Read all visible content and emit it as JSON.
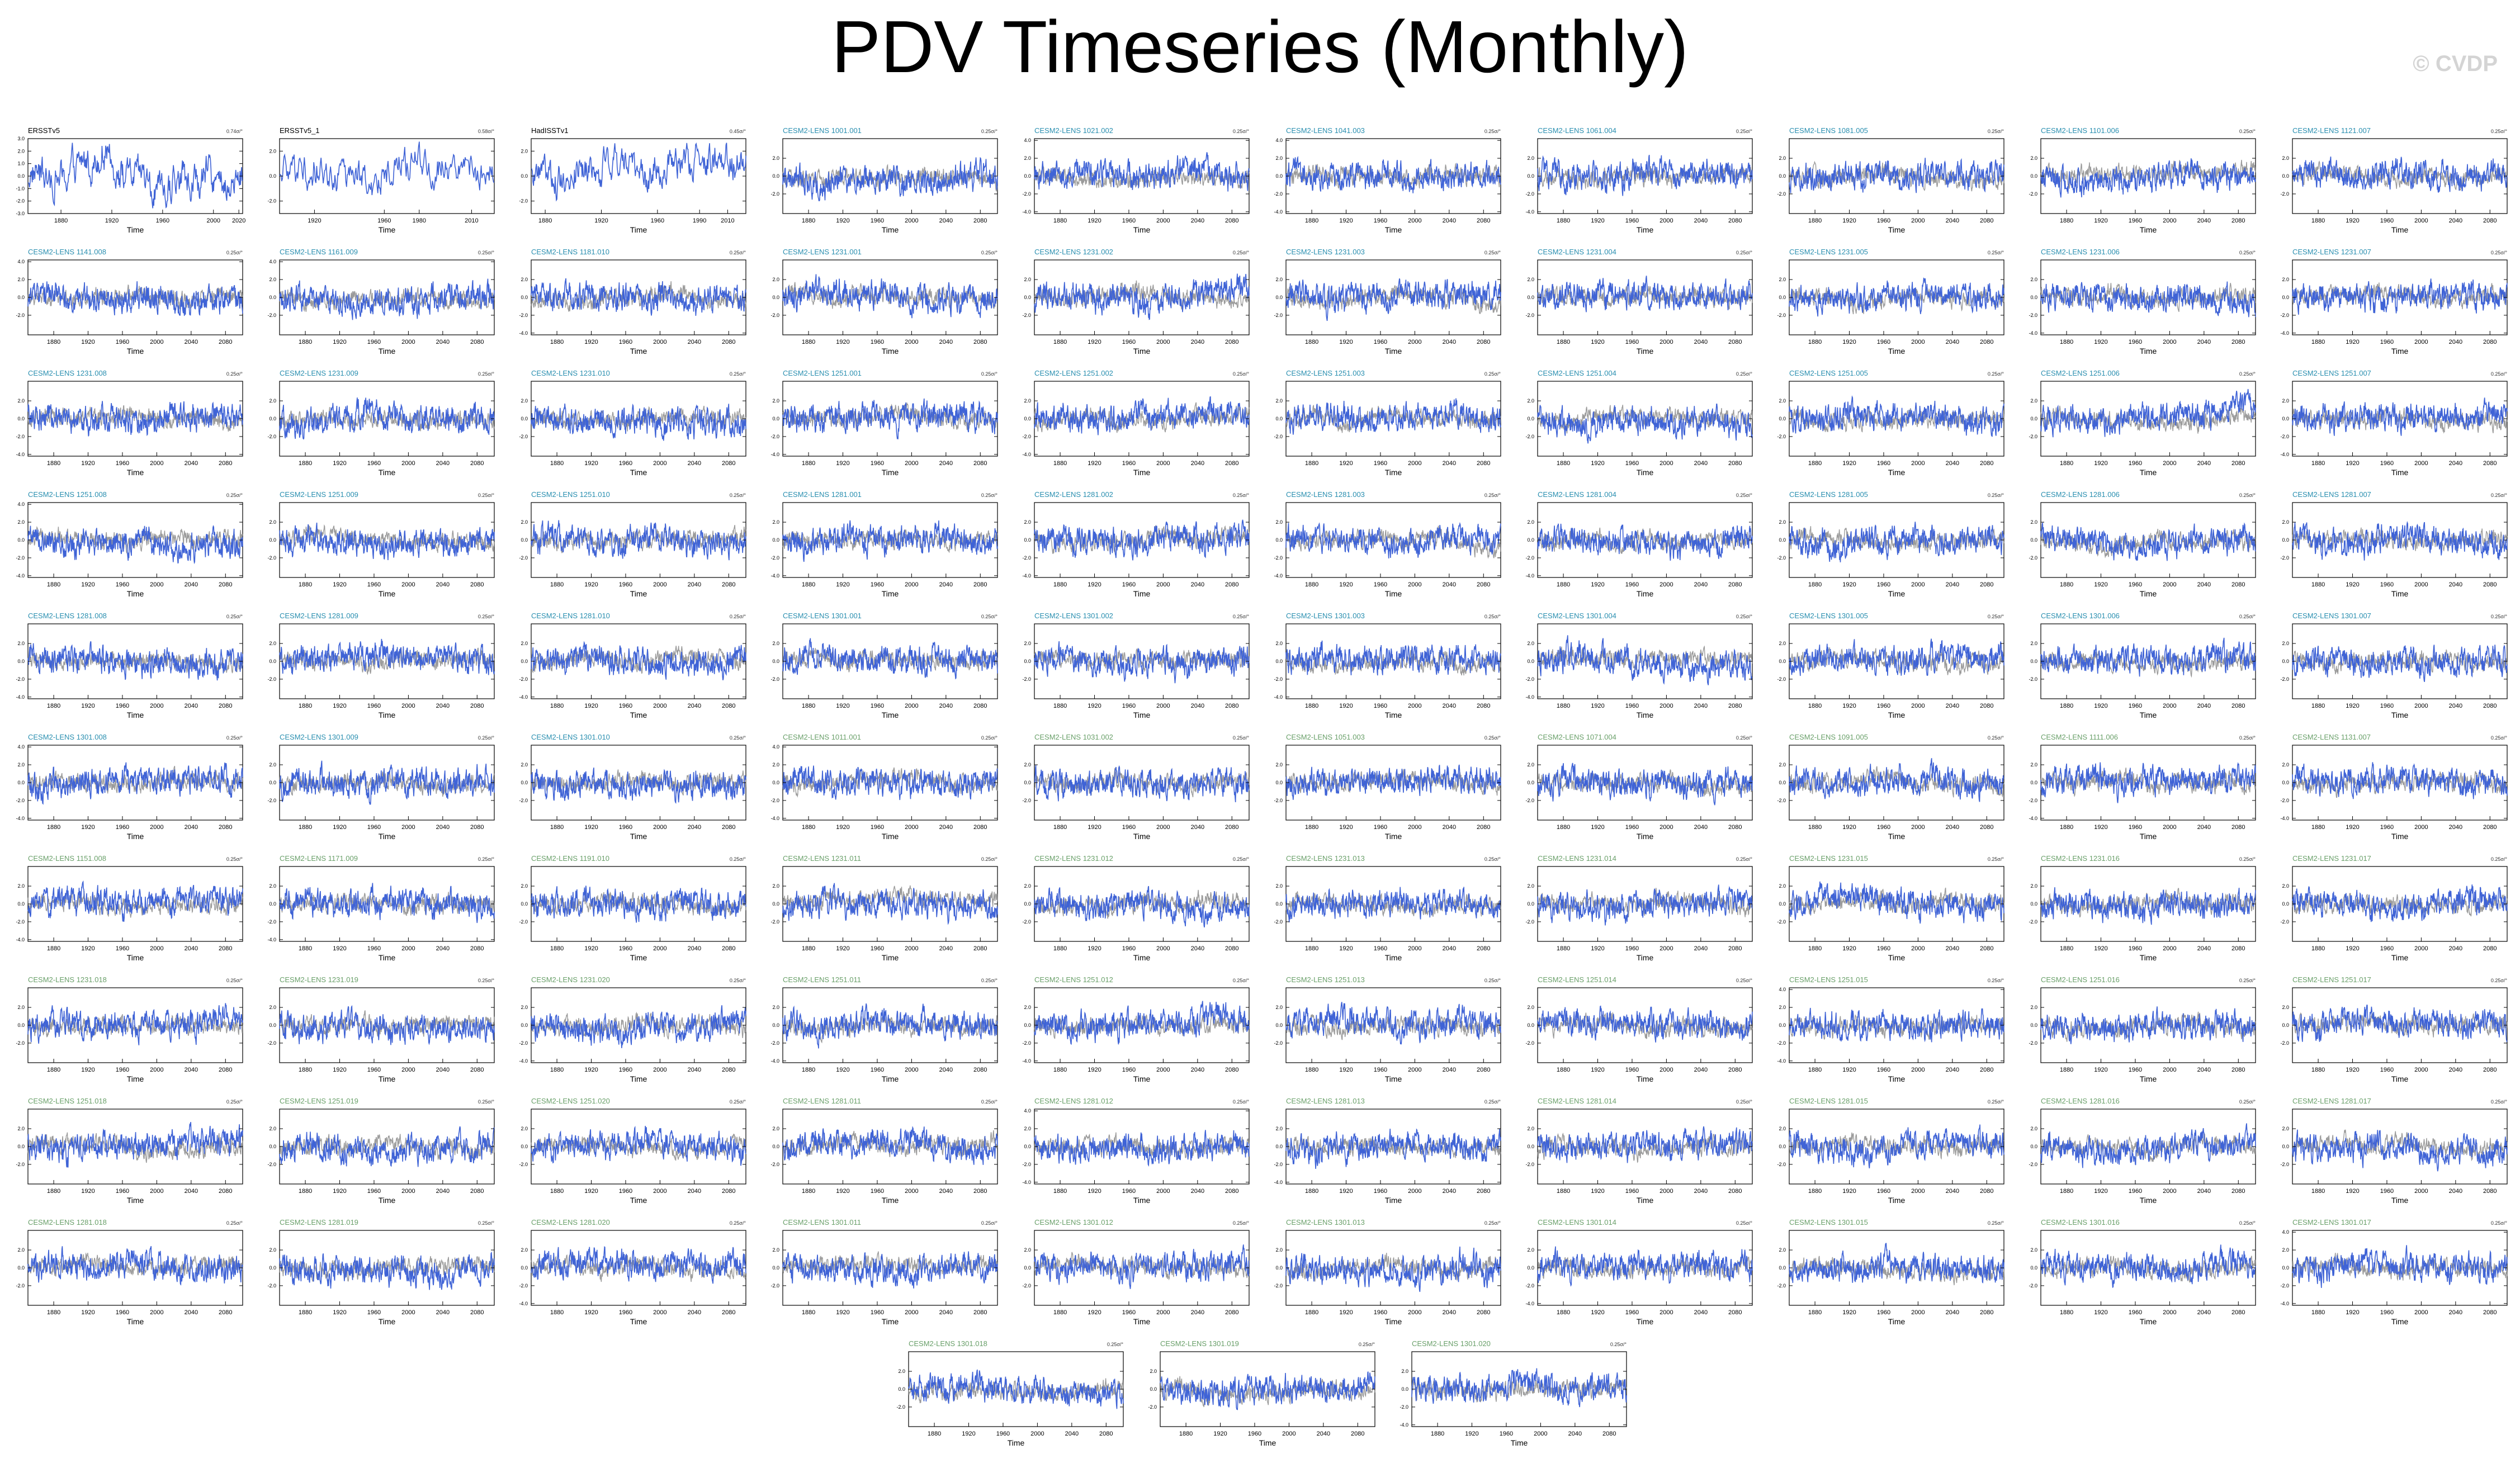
{
  "title": "PDV Timeseries (Monthly)",
  "watermark": "© CVDP",
  "colors": {
    "obs_line": "#3f63d6",
    "model_line": "#3f63d6",
    "ensemble_spread": "#8a8a8a",
    "obs_title": "#000000",
    "model_title_a": "#2a8fb0",
    "model_title_b": "#6aa06a"
  },
  "chart_data": {
    "type": "line",
    "xlabel": "Time",
    "panels": [
      {
        "title": "ERSSTv5",
        "trend": "0.74σ/°",
        "kind": "obs",
        "x_ticks": [
          1880,
          1920,
          1960,
          2000,
          2020
        ],
        "xlim": [
          1854,
          2023
        ],
        "y_ticks": [
          "3.0",
          "2.0",
          "1.0",
          "0.0",
          "-1.0",
          "-2.0",
          "-3.0"
        ],
        "ylim": [
          -3.0,
          3.0
        ]
      },
      {
        "title": "ERSSTv5_1",
        "trend": "0.58σ/°",
        "kind": "obs",
        "x_ticks": [
          1920,
          1960,
          1980,
          2010
        ],
        "xlim": [
          1900,
          2023
        ],
        "y_ticks": [
          "2.0",
          "0.0",
          "-2.0"
        ],
        "ylim": [
          -3.0,
          3.0
        ]
      },
      {
        "title": "HadISSTv1",
        "trend": "0.45σ/°",
        "kind": "obs",
        "x_ticks": [
          1880,
          1920,
          1960,
          1990,
          2010
        ],
        "xlim": [
          1870,
          2023
        ],
        "y_ticks": [
          "2.0",
          "0.0",
          "-2.0"
        ],
        "ylim": [
          -3.0,
          3.0
        ]
      },
      {
        "title": "CESM2-LENS 1001.001",
        "trend": "0.25σ/°",
        "kind": "a"
      },
      {
        "title": "CESM2-LENS 1021.002",
        "trend": "0.25σ/°",
        "kind": "a",
        "y_ticks": [
          "4.0",
          "2.0",
          "0.0",
          "-2.0",
          "-4.0"
        ]
      },
      {
        "title": "CESM2-LENS 1041.003",
        "trend": "0.25σ/°",
        "kind": "a",
        "y_ticks": [
          "4.0",
          "2.0",
          "0.0",
          "-2.0",
          "-4.0"
        ]
      },
      {
        "title": "CESM2-LENS 1061.004",
        "trend": "0.25σ/°",
        "kind": "a",
        "y_ticks": [
          "2.0",
          "0.0",
          "-2.0",
          "-4.0"
        ]
      },
      {
        "title": "CESM2-LENS 1081.005",
        "trend": "0.25σ/°",
        "kind": "a"
      },
      {
        "title": "CESM2-LENS 1101.006",
        "trend": "0.25σ/°",
        "kind": "a"
      },
      {
        "title": "CESM2-LENS 1121.007",
        "trend": "0.25σ/°",
        "kind": "a"
      },
      {
        "title": "CESM2-LENS 1141.008",
        "trend": "0.25σ/°",
        "kind": "a",
        "y_ticks": [
          "4.0",
          "2.0",
          "0.0",
          "-2.0"
        ]
      },
      {
        "title": "CESM2-LENS 1161.009",
        "trend": "0.25σ/°",
        "kind": "a",
        "y_ticks": [
          "4.0",
          "2.0",
          "0.0",
          "-2.0"
        ]
      },
      {
        "title": "CESM2-LENS 1181.010",
        "trend": "0.25σ/°",
        "kind": "a",
        "y_ticks": [
          "2.0",
          "0.0",
          "-2.0",
          "-4.0"
        ]
      },
      {
        "title": "CESM2-LENS 1231.001",
        "trend": "0.25σ/°",
        "kind": "a"
      },
      {
        "title": "CESM2-LENS 1231.002",
        "trend": "0.25σ/°",
        "kind": "a"
      },
      {
        "title": "CESM2-LENS 1231.003",
        "trend": "0.25σ/°",
        "kind": "a"
      },
      {
        "title": "CESM2-LENS 1231.004",
        "trend": "0.25σ/°",
        "kind": "a"
      },
      {
        "title": "CESM2-LENS 1231.005",
        "trend": "0.25σ/°",
        "kind": "a"
      },
      {
        "title": "CESM2-LENS 1231.006",
        "trend": "0.25σ/°",
        "kind": "a",
        "y_ticks": [
          "2.0",
          "0.0",
          "-2.0",
          "-4.0"
        ]
      },
      {
        "title": "CESM2-LENS 1231.007",
        "trend": "0.25σ/°",
        "kind": "a",
        "y_ticks": [
          "2.0",
          "0.0",
          "-2.0",
          "-4.0"
        ]
      },
      {
        "title": "CESM2-LENS 1231.008",
        "trend": "0.25σ/°",
        "kind": "a",
        "y_ticks": [
          "2.0",
          "0.0",
          "-2.0",
          "-4.0"
        ]
      },
      {
        "title": "CESM2-LENS 1231.009",
        "trend": "0.25σ/°",
        "kind": "a"
      },
      {
        "title": "CESM2-LENS 1231.010",
        "trend": "0.25σ/°",
        "kind": "a"
      },
      {
        "title": "CESM2-LENS 1251.001",
        "trend": "0.25σ/°",
        "kind": "a",
        "y_ticks": [
          "2.0",
          "0.0",
          "-2.0",
          "-4.0"
        ]
      },
      {
        "title": "CESM2-LENS 1251.002",
        "trend": "0.25σ/°",
        "kind": "a",
        "y_ticks": [
          "2.0",
          "0.0",
          "-2.0",
          "-4.0"
        ]
      },
      {
        "title": "CESM2-LENS 1251.003",
        "trend": "0.25σ/°",
        "kind": "a"
      },
      {
        "title": "CESM2-LENS 1251.004",
        "trend": "0.25σ/°",
        "kind": "a"
      },
      {
        "title": "CESM2-LENS 1251.005",
        "trend": "0.25σ/°",
        "kind": "a"
      },
      {
        "title": "CESM2-LENS 1251.006",
        "trend": "0.25σ/°",
        "kind": "a"
      },
      {
        "title": "CESM2-LENS 1251.007",
        "trend": "0.25σ/°",
        "kind": "a",
        "y_ticks": [
          "2.0",
          "0.0",
          "-2.0",
          "-4.0"
        ]
      },
      {
        "title": "CESM2-LENS 1251.008",
        "trend": "0.25σ/°",
        "kind": "a",
        "y_ticks": [
          "4.0",
          "2.0",
          "0.0",
          "-2.0",
          "-4.0"
        ]
      },
      {
        "title": "CESM2-LENS 1251.009",
        "trend": "0.25σ/°",
        "kind": "a"
      },
      {
        "title": "CESM2-LENS 1251.010",
        "trend": "0.25σ/°",
        "kind": "a"
      },
      {
        "title": "CESM2-LENS 1281.001",
        "trend": "0.25σ/°",
        "kind": "a",
        "y_ticks": [
          "2.0",
          "0.0",
          "-2.0",
          "-4.0"
        ]
      },
      {
        "title": "CESM2-LENS 1281.002",
        "trend": "0.25σ/°",
        "kind": "a",
        "y_ticks": [
          "2.0",
          "0.0",
          "-2.0",
          "-4.0"
        ]
      },
      {
        "title": "CESM2-LENS 1281.003",
        "trend": "0.25σ/°",
        "kind": "a",
        "y_ticks": [
          "2.0",
          "0.0",
          "-2.0",
          "-4.0"
        ]
      },
      {
        "title": "CESM2-LENS 1281.004",
        "trend": "0.25σ/°",
        "kind": "a",
        "y_ticks": [
          "2.0",
          "0.0",
          "-2.0",
          "-4.0"
        ]
      },
      {
        "title": "CESM2-LENS 1281.005",
        "trend": "0.25σ/°",
        "kind": "a"
      },
      {
        "title": "CESM2-LENS 1281.006",
        "trend": "0.25σ/°",
        "kind": "a"
      },
      {
        "title": "CESM2-LENS 1281.007",
        "trend": "0.25σ/°",
        "kind": "a"
      },
      {
        "title": "CESM2-LENS 1281.008",
        "trend": "0.25σ/°",
        "kind": "a",
        "y_ticks": [
          "2.0",
          "0.0",
          "-2.0",
          "-4.0"
        ]
      },
      {
        "title": "CESM2-LENS 1281.009",
        "trend": "0.25σ/°",
        "kind": "a"
      },
      {
        "title": "CESM2-LENS 1281.010",
        "trend": "0.25σ/°",
        "kind": "a",
        "y_ticks": [
          "2.0",
          "0.0",
          "-2.0",
          "-4.0"
        ]
      },
      {
        "title": "CESM2-LENS 1301.001",
        "trend": "0.25σ/°",
        "kind": "a"
      },
      {
        "title": "CESM2-LENS 1301.002",
        "trend": "0.25σ/°",
        "kind": "a"
      },
      {
        "title": "CESM2-LENS 1301.003",
        "trend": "0.25σ/°",
        "kind": "a",
        "y_ticks": [
          "2.0",
          "0.0",
          "-2.0",
          "-4.0"
        ]
      },
      {
        "title": "CESM2-LENS 1301.004",
        "trend": "0.25σ/°",
        "kind": "a",
        "y_ticks": [
          "2.0",
          "0.0",
          "-2.0",
          "-4.0"
        ]
      },
      {
        "title": "CESM2-LENS 1301.005",
        "trend": "0.25σ/°",
        "kind": "a"
      },
      {
        "title": "CESM2-LENS 1301.006",
        "trend": "0.25σ/°",
        "kind": "a"
      },
      {
        "title": "CESM2-LENS 1301.007",
        "trend": "0.25σ/°",
        "kind": "a"
      },
      {
        "title": "CESM2-LENS 1301.008",
        "trend": "0.25σ/°",
        "kind": "a",
        "y_ticks": [
          "4.0",
          "2.0",
          "0.0",
          "-2.0",
          "-4.0"
        ]
      },
      {
        "title": "CESM2-LENS 1301.009",
        "trend": "0.25σ/°",
        "kind": "a"
      },
      {
        "title": "CESM2-LENS 1301.010",
        "trend": "0.25σ/°",
        "kind": "a"
      },
      {
        "title": "CESM2-LENS 1011.001",
        "trend": "0.25σ/°",
        "kind": "b",
        "y_ticks": [
          "4.0",
          "2.0",
          "0.0",
          "-2.0",
          "-4.0"
        ]
      },
      {
        "title": "CESM2-LENS 1031.002",
        "trend": "0.25σ/°",
        "kind": "b"
      },
      {
        "title": "CESM2-LENS 1051.003",
        "trend": "0.25σ/°",
        "kind": "b"
      },
      {
        "title": "CESM2-LENS 1071.004",
        "trend": "0.25σ/°",
        "kind": "b"
      },
      {
        "title": "CESM2-LENS 1091.005",
        "trend": "0.25σ/°",
        "kind": "b"
      },
      {
        "title": "CESM2-LENS 1111.006",
        "trend": "0.25σ/°",
        "kind": "b",
        "y_ticks": [
          "2.0",
          "0.0",
          "-2.0",
          "-4.0"
        ]
      },
      {
        "title": "CESM2-LENS 1131.007",
        "trend": "0.25σ/°",
        "kind": "b",
        "y_ticks": [
          "2.0",
          "0.0",
          "-2.0",
          "-4.0"
        ]
      },
      {
        "title": "CESM2-LENS 1151.008",
        "trend": "0.25σ/°",
        "kind": "b",
        "y_ticks": [
          "2.0",
          "0.0",
          "-2.0",
          "-4.0"
        ]
      },
      {
        "title": "CESM2-LENS 1171.009",
        "trend": "0.25σ/°",
        "kind": "b",
        "y_ticks": [
          "2.0",
          "0.0",
          "-2.0",
          "-4.0"
        ]
      },
      {
        "title": "CESM2-LENS 1191.010",
        "trend": "0.25σ/°",
        "kind": "b"
      },
      {
        "title": "CESM2-LENS 1231.011",
        "trend": "0.25σ/°",
        "kind": "b"
      },
      {
        "title": "CESM2-LENS 1231.012",
        "trend": "0.25σ/°",
        "kind": "b"
      },
      {
        "title": "CESM2-LENS 1231.013",
        "trend": "0.25σ/°",
        "kind": "b"
      },
      {
        "title": "CESM2-LENS 1231.014",
        "trend": "0.25σ/°",
        "kind": "b"
      },
      {
        "title": "CESM2-LENS 1231.015",
        "trend": "0.25σ/°",
        "kind": "b"
      },
      {
        "title": "CESM2-LENS 1231.016",
        "trend": "0.25σ/°",
        "kind": "b"
      },
      {
        "title": "CESM2-LENS 1231.017",
        "trend": "0.25σ/°",
        "kind": "b"
      },
      {
        "title": "CESM2-LENS 1231.018",
        "trend": "0.25σ/°",
        "kind": "b"
      },
      {
        "title": "CESM2-LENS 1231.019",
        "trend": "0.25σ/°",
        "kind": "b"
      },
      {
        "title": "CESM2-LENS 1231.020",
        "trend": "0.25σ/°",
        "kind": "b",
        "y_ticks": [
          "2.0",
          "0.0",
          "-2.0",
          "-4.0"
        ]
      },
      {
        "title": "CESM2-LENS 1251.011",
        "trend": "0.25σ/°",
        "kind": "b",
        "y_ticks": [
          "2.0",
          "0.0",
          "-2.0",
          "-4.0"
        ]
      },
      {
        "title": "CESM2-LENS 1251.012",
        "trend": "0.25σ/°",
        "kind": "b",
        "y_ticks": [
          "2.0",
          "0.0",
          "-2.0",
          "-4.0"
        ]
      },
      {
        "title": "CESM2-LENS 1251.013",
        "trend": "0.25σ/°",
        "kind": "b"
      },
      {
        "title": "CESM2-LENS 1251.014",
        "trend": "0.25σ/°",
        "kind": "b"
      },
      {
        "title": "CESM2-LENS 1251.015",
        "trend": "0.25σ/°",
        "kind": "b",
        "y_ticks": [
          "4.0",
          "2.0",
          "0.0",
          "-2.0",
          "-4.0"
        ]
      },
      {
        "title": "CESM2-LENS 1251.016",
        "trend": "0.25σ/°",
        "kind": "b"
      },
      {
        "title": "CESM2-LENS 1251.017",
        "trend": "0.25σ/°",
        "kind": "b"
      },
      {
        "title": "CESM2-LENS 1251.018",
        "trend": "0.25σ/°",
        "kind": "b"
      },
      {
        "title": "CESM2-LENS 1251.019",
        "trend": "0.25σ/°",
        "kind": "b"
      },
      {
        "title": "CESM2-LENS 1251.020",
        "trend": "0.25σ/°",
        "kind": "b"
      },
      {
        "title": "CESM2-LENS 1281.011",
        "trend": "0.25σ/°",
        "kind": "b"
      },
      {
        "title": "CESM2-LENS 1281.012",
        "trend": "0.25σ/°",
        "kind": "b",
        "y_ticks": [
          "4.0",
          "2.0",
          "0.0",
          "-2.0",
          "-4.0"
        ]
      },
      {
        "title": "CESM2-LENS 1281.013",
        "trend": "0.25σ/°",
        "kind": "b",
        "y_ticks": [
          "2.0",
          "0.0",
          "-2.0",
          "-4.0"
        ]
      },
      {
        "title": "CESM2-LENS 1281.014",
        "trend": "0.25σ/°",
        "kind": "b"
      },
      {
        "title": "CESM2-LENS 1281.015",
        "trend": "0.25σ/°",
        "kind": "b"
      },
      {
        "title": "CESM2-LENS 1281.016",
        "trend": "0.25σ/°",
        "kind": "b"
      },
      {
        "title": "CESM2-LENS 1281.017",
        "trend": "0.25σ/°",
        "kind": "b"
      },
      {
        "title": "CESM2-LENS 1281.018",
        "trend": "0.25σ/°",
        "kind": "b"
      },
      {
        "title": "CESM2-LENS 1281.019",
        "trend": "0.25σ/°",
        "kind": "b"
      },
      {
        "title": "CESM2-LENS 1281.020",
        "trend": "0.25σ/°",
        "kind": "b",
        "y_ticks": [
          "2.0",
          "0.0",
          "-2.0",
          "-4.0"
        ]
      },
      {
        "title": "CESM2-LENS 1301.011",
        "trend": "0.25σ/°",
        "kind": "b"
      },
      {
        "title": "CESM2-LENS 1301.012",
        "trend": "0.25σ/°",
        "kind": "b"
      },
      {
        "title": "CESM2-LENS 1301.013",
        "trend": "0.25σ/°",
        "kind": "b"
      },
      {
        "title": "CESM2-LENS 1301.014",
        "trend": "0.25σ/°",
        "kind": "b",
        "y_ticks": [
          "2.0",
          "0.0",
          "-2.0",
          "-4.0"
        ]
      },
      {
        "title": "CESM2-LENS 1301.015",
        "trend": "0.25σ/°",
        "kind": "b"
      },
      {
        "title": "CESM2-LENS 1301.016",
        "trend": "0.25σ/°",
        "kind": "b"
      },
      {
        "title": "CESM2-LENS 1301.017",
        "trend": "0.25σ/°",
        "kind": "b",
        "y_ticks": [
          "4.0",
          "2.0",
          "0.0",
          "-2.0",
          "-4.0"
        ]
      },
      {
        "title": "CESM2-LENS 1301.018",
        "trend": "0.25σ/°",
        "kind": "b"
      },
      {
        "title": "CESM2-LENS 1301.019",
        "trend": "0.25σ/°",
        "kind": "b"
      },
      {
        "title": "CESM2-LENS 1301.020",
        "trend": "0.25σ/°",
        "kind": "b",
        "y_ticks": [
          "2.0",
          "0.0",
          "-2.0",
          "-4.0"
        ]
      }
    ],
    "default_model_axes": {
      "x_ticks": [
        1880,
        1920,
        1960,
        2000,
        2040,
        2080
      ],
      "xlim": [
        1850,
        2100
      ],
      "y_ticks": [
        "2.0",
        "0.0",
        "-2.0"
      ],
      "ylim": [
        -4.2,
        4.2
      ]
    }
  }
}
